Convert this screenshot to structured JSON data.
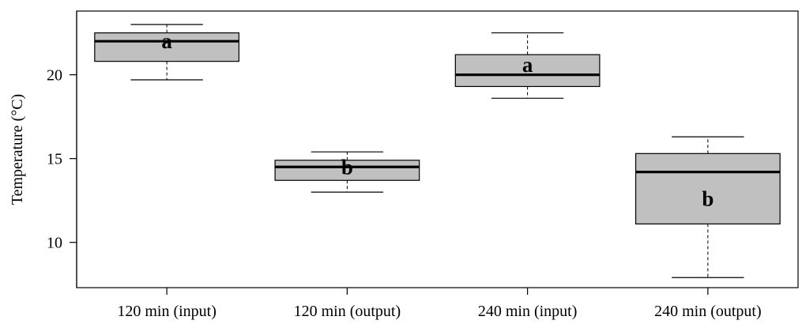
{
  "chart_data": {
    "type": "box",
    "title": "",
    "xlabel": "",
    "ylabel": "Temperature (°C)",
    "ylim": [
      7.3,
      23.8
    ],
    "yticks": [
      10,
      15,
      20
    ],
    "grid": false,
    "box_fill": "#c0c0c0",
    "categories": [
      "120 min (input)",
      "120 min (output)",
      "240 min (input)",
      "240 min (output)"
    ],
    "boxes": [
      {
        "category": "120 min (input)",
        "whisker_low": 19.7,
        "q1": 20.8,
        "median": 22.0,
        "q3": 22.5,
        "whisker_high": 23.0,
        "group_letter": "a"
      },
      {
        "category": "120 min (output)",
        "whisker_low": 13.0,
        "q1": 13.7,
        "median": 14.5,
        "q3": 14.9,
        "whisker_high": 15.4,
        "group_letter": "b"
      },
      {
        "category": "240 min (input)",
        "whisker_low": 18.6,
        "q1": 19.3,
        "median": 20.0,
        "q3": 21.2,
        "whisker_high": 22.5,
        "group_letter": "a"
      },
      {
        "category": "240 min (output)",
        "whisker_low": 7.9,
        "q1": 11.1,
        "median": 14.2,
        "q3": 15.3,
        "whisker_high": 16.3,
        "group_letter": "b"
      }
    ]
  }
}
